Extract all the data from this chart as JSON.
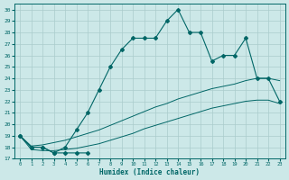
{
  "xlabel": "Humidex (Indice chaleur)",
  "bg_color": "#cce8e8",
  "grid_color": "#aacccc",
  "line_color": "#006666",
  "xlim": [
    -0.5,
    23.5
  ],
  "ylim": [
    17,
    30.5
  ],
  "xticks": [
    0,
    1,
    2,
    3,
    4,
    5,
    6,
    7,
    8,
    9,
    10,
    11,
    12,
    13,
    14,
    15,
    16,
    17,
    18,
    19,
    20,
    21,
    22,
    23
  ],
  "yticks": [
    17,
    18,
    19,
    20,
    21,
    22,
    23,
    24,
    25,
    26,
    27,
    28,
    29,
    30
  ],
  "main_x": [
    0,
    1,
    2,
    3,
    4,
    5,
    6,
    7,
    8,
    9,
    10,
    11,
    12,
    13,
    14,
    15,
    16,
    17,
    18,
    19,
    20,
    21,
    22,
    23
  ],
  "main_y": [
    19,
    18,
    18,
    17.5,
    18,
    19.5,
    21,
    23,
    25,
    26.5,
    27.5,
    27.5,
    27.5,
    29,
    30,
    28,
    28,
    25.5,
    26,
    26,
    27.5,
    24,
    24,
    22
  ],
  "short_x": [
    0,
    1,
    2,
    3,
    4,
    5,
    6
  ],
  "short_y": [
    19,
    18,
    18,
    17.5,
    17.5,
    17.5,
    17.5
  ],
  "upper_diag_x": [
    0,
    1,
    2,
    3,
    4,
    5,
    6,
    7,
    8,
    9,
    10,
    11,
    12,
    13,
    14,
    15,
    16,
    17,
    18,
    19,
    20,
    21,
    22,
    23
  ],
  "upper_diag_y": [
    19,
    18.1,
    18.2,
    18.4,
    18.6,
    18.9,
    19.2,
    19.5,
    19.9,
    20.3,
    20.7,
    21.1,
    21.5,
    21.8,
    22.2,
    22.5,
    22.8,
    23.1,
    23.3,
    23.5,
    23.8,
    24.0,
    24.0,
    23.8
  ],
  "lower_diag_x": [
    0,
    1,
    2,
    3,
    4,
    5,
    6,
    7,
    8,
    9,
    10,
    11,
    12,
    13,
    14,
    15,
    16,
    17,
    18,
    19,
    20,
    21,
    22,
    23
  ],
  "lower_diag_y": [
    19,
    17.8,
    17.7,
    17.7,
    17.8,
    17.9,
    18.1,
    18.3,
    18.6,
    18.9,
    19.2,
    19.6,
    19.9,
    20.2,
    20.5,
    20.8,
    21.1,
    21.4,
    21.6,
    21.8,
    22.0,
    22.1,
    22.1,
    21.8
  ]
}
